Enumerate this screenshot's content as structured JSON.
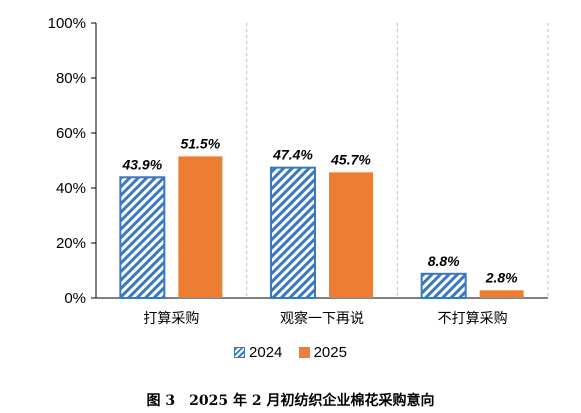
{
  "chart_data": {
    "type": "bar",
    "categories": [
      "打算采购",
      "观察一下再说",
      "不打算采购"
    ],
    "series": [
      {
        "name": "2024",
        "values": [
          43.9,
          47.4,
          8.8
        ],
        "labels": [
          "43.9%",
          "47.4%",
          "8.8%"
        ],
        "color": "#3a78c2",
        "pattern": "diagonal-hatch"
      },
      {
        "name": "2025",
        "values": [
          51.5,
          45.7,
          2.8
        ],
        "labels": [
          "51.5%",
          "45.7%",
          "2.8%"
        ],
        "color": "#ed7d31"
      }
    ],
    "y_ticks": [
      "0%",
      "20%",
      "40%",
      "60%",
      "80%",
      "100%"
    ],
    "ylim": [
      0,
      100
    ],
    "grid": "vertical dashed category separators",
    "legend_position": "bottom"
  },
  "legend": {
    "item_2024": "2024",
    "item_2025": "2025"
  },
  "caption": "图 3　2025 年 2 月初纺织企业棉花采购意向"
}
